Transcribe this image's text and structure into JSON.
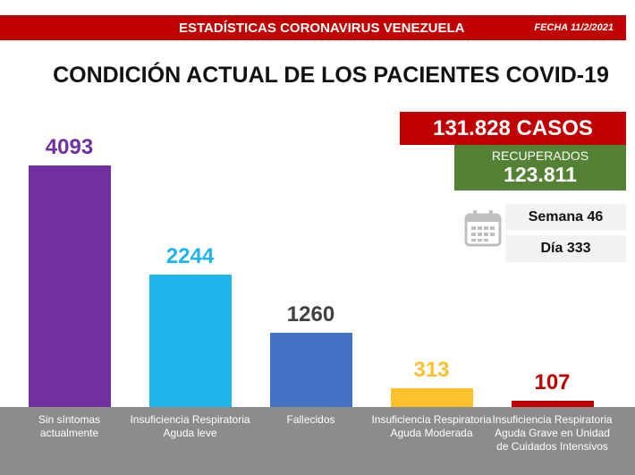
{
  "chart_data": {
    "type": "bar",
    "header": "ESTADÍSTICAS CORONAVIRUS VENEZUELA",
    "date": "FECHA 11/2/2021",
    "title": "CONDICIÓN ACTUAL DE LOS PACIENTES COVID-19",
    "summary": {
      "cases": "131.828 CASOS",
      "recovered_label": "RECUPERADOS",
      "recovered": "123.811",
      "week": "Semana 46",
      "day": "Día 333"
    },
    "categories": [
      "Sin síntomas actualmente",
      "Insuficiencia Respiratoria Aguda leve",
      "Fallecidos",
      "Insuficiencia Respiratoria Aguda Moderada",
      "Insuficiencia Respiratoria Aguda Grave en Unidad de Cuidados Intensivos"
    ],
    "values": [
      4093,
      2244,
      1260,
      313,
      107
    ],
    "colors": [
      "#7030a0",
      "#1fb4ea",
      "#4472c4",
      "#fcc12c",
      "#c00000"
    ],
    "label_colors": [
      "#7030a0",
      "#1fb4ea",
      "#404040",
      "#fcc12c",
      "#c00000"
    ]
  }
}
